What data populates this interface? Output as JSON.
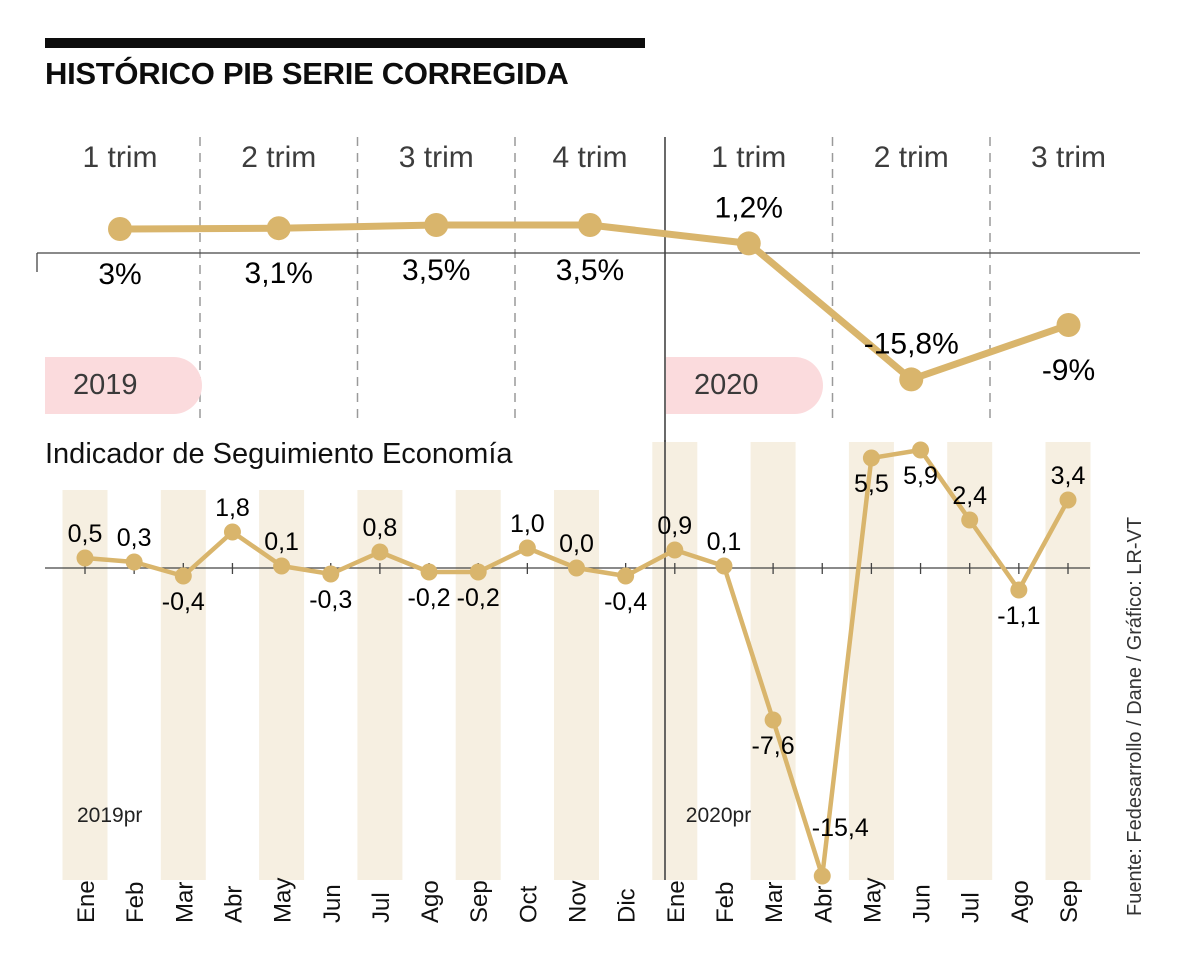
{
  "header": {
    "title": "HISTÓRICO PIB SERIE CORREGIDA"
  },
  "source_note": "Fuente: Fedesarrollo / Dane / Gráfico: LR-VT",
  "colors": {
    "accent_line": "#D9B56C",
    "year_pill": "#FBDBDD",
    "stripe": "#F6EFE1",
    "axis": "#444444",
    "text": "#111111"
  },
  "chart_data": [
    {
      "type": "line",
      "title": "",
      "categories": [
        "1 trim",
        "2 trim",
        "3 trim",
        "4 trim",
        "1 trim",
        "2 trim",
        "3 trim"
      ],
      "values": [
        3,
        3.1,
        3.5,
        3.5,
        1.2,
        -15.8,
        -9
      ],
      "labels": [
        "3%",
        "3,1%",
        "3,5%",
        "3,5%",
        "1,2%",
        "-15,8%",
        "-9%"
      ],
      "label_positions": [
        "below",
        "below",
        "below",
        "below",
        "above",
        "above",
        "below"
      ],
      "year_badges": [
        {
          "label": "2019",
          "at_category_index": 0
        },
        {
          "label": "2020",
          "at_category_index": 4
        }
      ],
      "year_divider_before_index": 4,
      "ylim": [
        -18,
        6
      ],
      "grid": "dashed-vertical-separators",
      "legend": "none"
    },
    {
      "type": "line",
      "title": "Indicador de Seguimiento Economía",
      "categories": [
        "Ene",
        "Feb",
        "Mar",
        "Abr",
        "May",
        "Jun",
        "Jul",
        "Ago",
        "Sep",
        "Oct",
        "Nov",
        "Dic",
        "Ene",
        "Feb",
        "Mar",
        "Abr",
        "May",
        "Jun",
        "Jul",
        "Ago",
        "Sep"
      ],
      "values": [
        0.5,
        0.3,
        -0.4,
        1.8,
        0.1,
        -0.3,
        0.8,
        -0.2,
        -0.2,
        1.0,
        0.0,
        -0.4,
        0.9,
        0.1,
        -7.6,
        -15.4,
        5.5,
        5.9,
        2.4,
        -1.1,
        3.4
      ],
      "labels": [
        "0,5",
        "0,3",
        "-0,4",
        "1,8",
        "0,1",
        "-0,3",
        "0,8",
        "-0,2",
        "-0,2",
        "1,0",
        "0,0",
        "-0,4",
        "0,9",
        "0,1",
        "-7,6",
        "-15,4",
        "5,5",
        "5,9",
        "2,4",
        "-1,1",
        "3,4"
      ],
      "label_positions": [
        null,
        null,
        null,
        null,
        null,
        null,
        null,
        null,
        null,
        null,
        null,
        null,
        null,
        null,
        null,
        null,
        "below",
        "below",
        null,
        null,
        null
      ],
      "label_custom_offsets": {
        "15": [
          18,
          -40
        ]
      },
      "year_labels": [
        {
          "label": "2019pr",
          "at_index": 0,
          "x_offset": -8
        },
        {
          "label": "2020pr",
          "at_index": 12,
          "x_offset": 11
        }
      ],
      "year_divider_before_index": 12,
      "ylim": [
        -16.5,
        6.5
      ],
      "grid": "alternating-month-stripes",
      "legend": "none"
    }
  ]
}
